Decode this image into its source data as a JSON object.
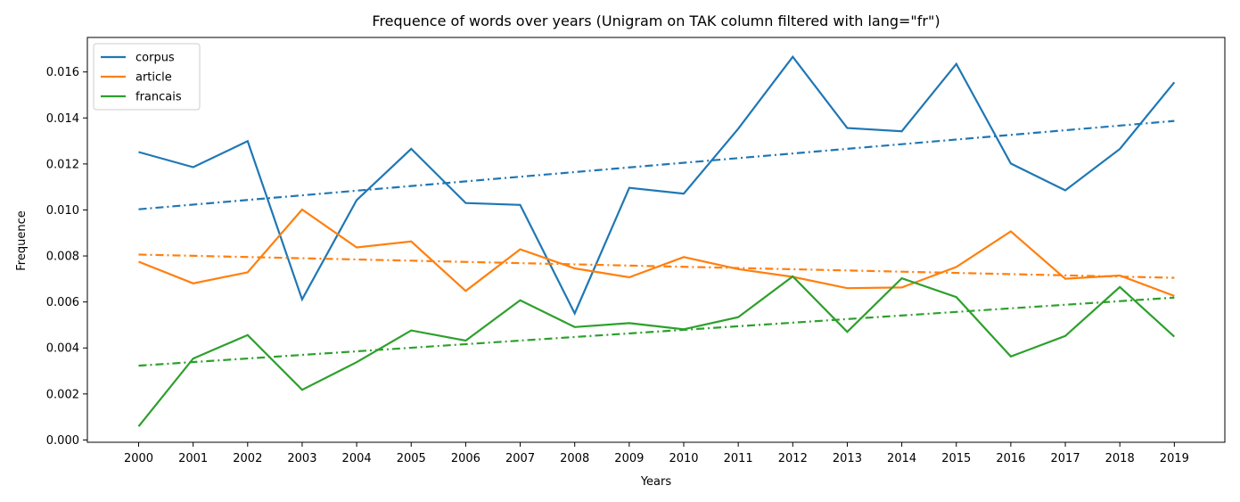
{
  "chart_data": {
    "type": "line",
    "title": "Frequence of words over years (Unigram on TAK column filtered with lang=\"fr\")",
    "xlabel": "Years",
    "ylabel": "Frequence",
    "categories": [
      "2000",
      "2001",
      "2002",
      "2003",
      "2004",
      "2005",
      "2006",
      "2007",
      "2008",
      "2009",
      "2010",
      "2011",
      "2012",
      "2013",
      "2014",
      "2015",
      "2016",
      "2017",
      "2018",
      "2019"
    ],
    "y_ticks": [
      "0.000",
      "0.002",
      "0.004",
      "0.006",
      "0.008",
      "0.010",
      "0.012",
      "0.014",
      "0.016"
    ],
    "ylim": [
      -0.0001,
      0.0175
    ],
    "grid": false,
    "legend_position": "top-left",
    "series": [
      {
        "name": "corpus",
        "color": "#1f77b4",
        "values": [
          0.01252,
          0.01186,
          0.01299,
          0.00611,
          0.01043,
          0.01266,
          0.0103,
          0.01022,
          0.0055,
          0.01096,
          0.01071,
          0.01353,
          0.01666,
          0.01356,
          0.01342,
          0.01635,
          0.01202,
          0.01085,
          0.01265,
          0.01555
        ],
        "trend": [
          0.01003,
          0.01387
        ]
      },
      {
        "name": "article",
        "color": "#ff7f0e",
        "values": [
          0.00775,
          0.00681,
          0.00729,
          0.01002,
          0.00837,
          0.00863,
          0.00648,
          0.00829,
          0.00746,
          0.00707,
          0.00795,
          0.00743,
          0.00709,
          0.0066,
          0.00663,
          0.00752,
          0.00907,
          0.00701,
          0.00715,
          0.00626
        ],
        "trend": [
          0.00806,
          0.00705
        ]
      },
      {
        "name": "francais",
        "color": "#2ca02c",
        "values": [
          0.00059,
          0.00354,
          0.00456,
          0.00218,
          0.00338,
          0.00476,
          0.00432,
          0.00607,
          0.00491,
          0.00508,
          0.00481,
          0.00534,
          0.00711,
          0.0047,
          0.00703,
          0.00621,
          0.00363,
          0.00452,
          0.00665,
          0.00449
        ],
        "trend": [
          0.00323,
          0.00619
        ]
      }
    ]
  }
}
